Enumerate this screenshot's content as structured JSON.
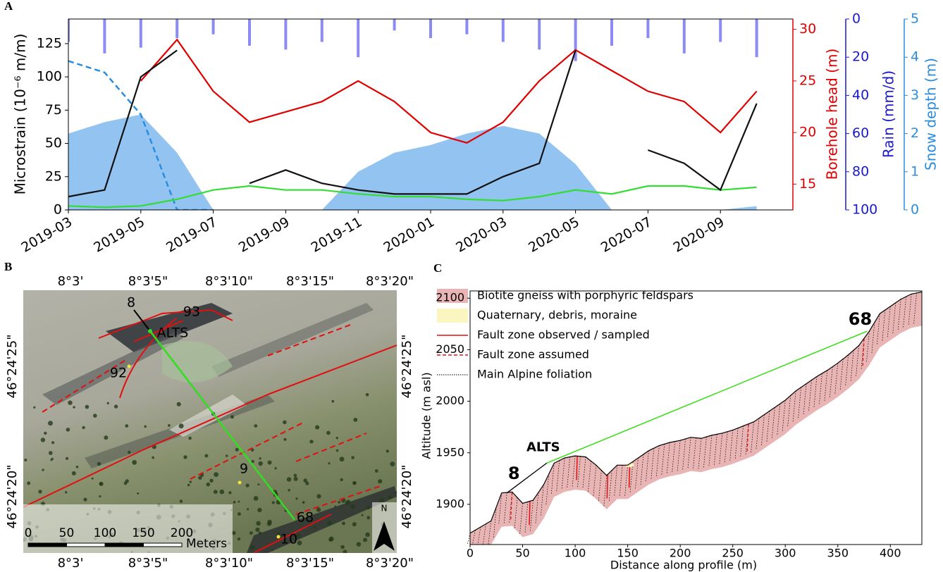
{
  "chart_data": [
    {
      "type": "line",
      "label": "A",
      "x": [
        "2019-03",
        "2019-04",
        "2019-05",
        "2019-06",
        "2019-07",
        "2019-08",
        "2019-09",
        "2019-10",
        "2019-11",
        "2019-12",
        "2020-01",
        "2020-02",
        "2020-03",
        "2020-04",
        "2020-05",
        "2020-06",
        "2020-07",
        "2020-08",
        "2020-09",
        "2020-10"
      ],
      "xlim": [
        "2019-03",
        "2020-11"
      ],
      "xticks": [
        "2019-03",
        "2019-05",
        "2019-07",
        "2019-09",
        "2019-11",
        "2020-01",
        "2020-03",
        "2020-05",
        "2020-07",
        "2020-09"
      ],
      "ylabel": "Microstrain (10⁻⁶ m/m)",
      "ylim": [
        0,
        143.5
      ],
      "yticks": [
        0,
        25,
        50,
        75,
        100,
        125
      ],
      "y2label": "Borehole head (m)",
      "y2lim": [
        12.5,
        31
      ],
      "y2ticks": [
        15,
        20,
        25,
        30
      ],
      "y3label": "Rain (mm/d)",
      "y3lim": [
        100,
        0
      ],
      "y3ticks": [
        0,
        20,
        40,
        60,
        80,
        100
      ],
      "y4label": "Snow depth (m)",
      "y4lim": [
        0,
        5
      ],
      "y4ticks": [
        0,
        1,
        2,
        3,
        4,
        5
      ],
      "series": [
        {
          "kind": "area",
          "axis": "y4",
          "color": "#7fb8ef",
          "values": [
            2.0,
            2.3,
            2.5,
            1.5,
            0,
            0,
            0,
            0,
            1.0,
            1.5,
            1.7,
            2.0,
            2.2,
            2.0,
            1.2,
            0,
            0,
            0,
            0,
            0.1
          ]
        },
        {
          "kind": "dashed",
          "axis": "y4",
          "color": "#2a8de0",
          "values": [
            3.9,
            3.6,
            2.5,
            0,
            0,
            null,
            null,
            null,
            null,
            null,
            null,
            null,
            null,
            null,
            null,
            null,
            null,
            null,
            null,
            null
          ]
        },
        {
          "kind": "bar",
          "axis": "y3",
          "color": "#6e6ef0",
          "values": [
            12,
            18,
            15,
            10,
            8,
            14,
            16,
            12,
            20,
            6,
            10,
            8,
            12,
            16,
            22,
            14,
            10,
            18,
            12,
            20
          ]
        },
        {
          "kind": "line",
          "axis": "y",
          "color": "#33dd33",
          "values": [
            3,
            2,
            3,
            8,
            15,
            18,
            15,
            15,
            12,
            10,
            10,
            8,
            7,
            10,
            15,
            12,
            18,
            18,
            15,
            17
          ]
        },
        {
          "kind": "line",
          "axis": "y2",
          "color": "#e00000",
          "values": [
            null,
            null,
            25,
            29,
            24,
            21,
            22,
            23,
            25,
            23,
            20,
            19,
            21,
            25,
            28,
            26,
            24,
            23,
            20,
            24
          ]
        },
        {
          "kind": "line",
          "axis": "y",
          "color": "#111111",
          "values": [
            10,
            15,
            100,
            120,
            null,
            20,
            30,
            20,
            15,
            12,
            12,
            12,
            25,
            35,
            120,
            null,
            45,
            35,
            15,
            80
          ]
        }
      ]
    },
    {
      "type": "map",
      "label": "B",
      "top_labels": [
        "8°3'",
        "8°3'5\"",
        "8°3'10\"",
        "8°3'15\"",
        "8°3'20\""
      ],
      "bottom_labels": [
        "8°3'",
        "8°3'5\"",
        "8°3'10\"",
        "8°3'15\"",
        "8°3'20\""
      ],
      "left_labels": [
        "46°24'25\"",
        "46°24'20\""
      ],
      "right_labels": [
        "46°24'25\"",
        "46°24'20\""
      ],
      "sites": [
        "8",
        "93",
        "ALTS",
        "92",
        "9",
        "68",
        "10"
      ],
      "scale": [
        0,
        50,
        100,
        150,
        200
      ],
      "scale_unit": "Meters",
      "north": "N"
    },
    {
      "type": "line",
      "label": "C",
      "xlabel": "Distance along profile (m)",
      "ylabel": "Altitude (m asl)",
      "xlim": [
        0,
        430
      ],
      "xticks": [
        0,
        50,
        100,
        150,
        200,
        250,
        300,
        350,
        400
      ],
      "ylim": [
        1861,
        2107
      ],
      "yticks": [
        1900,
        1950,
        2000,
        2050,
        2100
      ],
      "x": [
        0,
        10,
        20,
        30,
        40,
        50,
        60,
        70,
        80,
        90,
        100,
        110,
        120,
        130,
        140,
        150,
        160,
        170,
        180,
        190,
        200,
        210,
        220,
        230,
        240,
        250,
        260,
        270,
        280,
        290,
        300,
        310,
        320,
        330,
        340,
        350,
        360,
        370,
        380,
        390,
        400,
        410,
        420,
        430
      ],
      "values": [
        1872,
        1878,
        1884,
        1911,
        1912,
        1901,
        1904,
        1919,
        1940,
        1945,
        1947,
        1946,
        1938,
        1928,
        1938,
        1938,
        1945,
        1952,
        1957,
        1960,
        1962,
        1965,
        1964,
        1967,
        1969,
        1972,
        1976,
        1980,
        1987,
        1994,
        2001,
        2010,
        2017,
        2024,
        2030,
        2037,
        2045,
        2054,
        2068,
        2085,
        2092,
        2099,
        2104,
        2106
      ],
      "color": "#e8b4b4",
      "faults_observed": [
        57,
        102,
        131,
        152
      ],
      "faults_assumed": [
        40,
        265,
        375
      ],
      "annotations": [
        {
          "text": "8",
          "x": 35,
          "y": 1911
        },
        {
          "text": "ALTS",
          "x": 73,
          "y": 1940
        },
        {
          "text": "68",
          "x": 378,
          "y": 2068
        }
      ],
      "legend": [
        {
          "name": "Biotite gneiss with porphyric feldspars",
          "color": "#e8b4b4",
          "style": "patch"
        },
        {
          "name": "Quaternary, debris, moraine",
          "color": "#fbf6bf",
          "style": "patch"
        },
        {
          "name": "Fault zone observed / sampled",
          "color": "#e01010",
          "style": "solid"
        },
        {
          "name": "Fault zone assumed",
          "color": "#e01010",
          "style": "dashed"
        },
        {
          "name": "Main Alpine foliation",
          "color": "#000000",
          "style": "dotted"
        }
      ]
    }
  ]
}
